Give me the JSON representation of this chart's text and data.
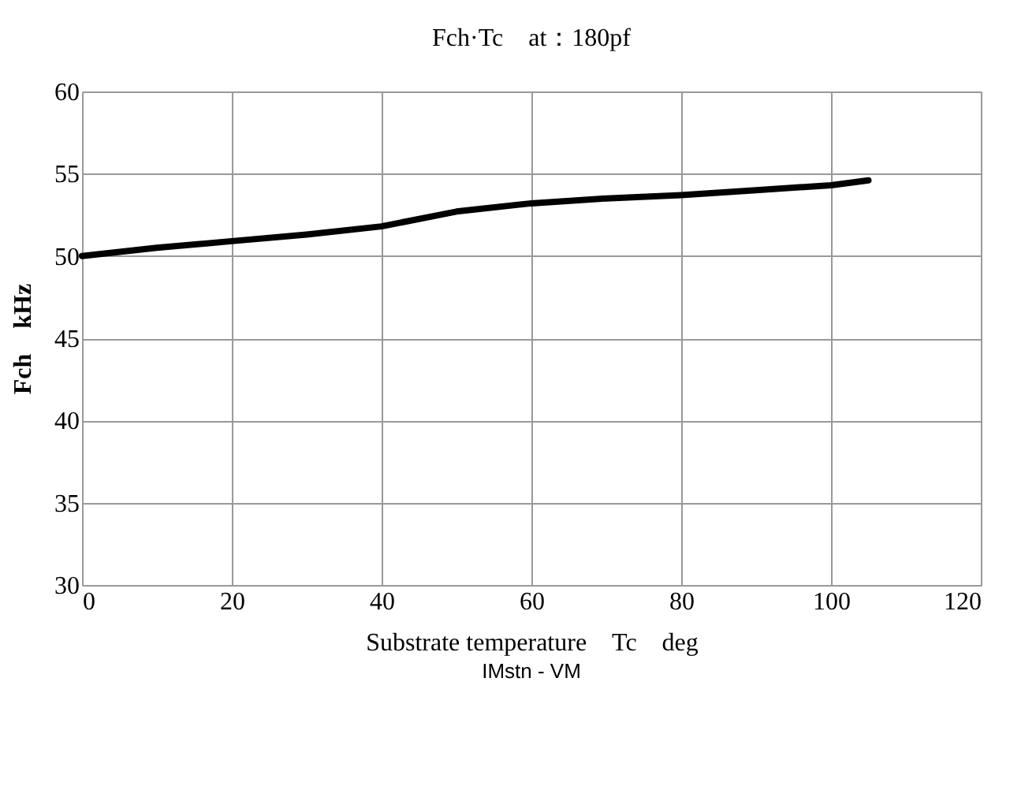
{
  "chart_data": {
    "type": "line",
    "title": "Fch·Tc　at：180pf",
    "xlabel": "Substrate temperature　Tc　deg",
    "ylabel": "Fch　kHz",
    "x": [
      0,
      10,
      20,
      30,
      40,
      50,
      60,
      70,
      80,
      90,
      100,
      105
    ],
    "series": [
      {
        "color": "#000000",
        "values": [
          50.0,
          50.5,
          50.9,
          51.3,
          51.8,
          52.7,
          53.2,
          53.5,
          53.7,
          54.0,
          54.3,
          54.6
        ]
      }
    ],
    "xlim": [
      0,
      120
    ],
    "xticks": [
      0,
      20,
      40,
      60,
      80,
      100,
      120
    ],
    "ylim": [
      30,
      60
    ],
    "yticks": [
      30,
      35,
      40,
      45,
      50,
      55,
      60
    ],
    "grid": true,
    "marker": "none",
    "line_style": "solid",
    "annotations": [
      "IMstn - VM"
    ]
  }
}
